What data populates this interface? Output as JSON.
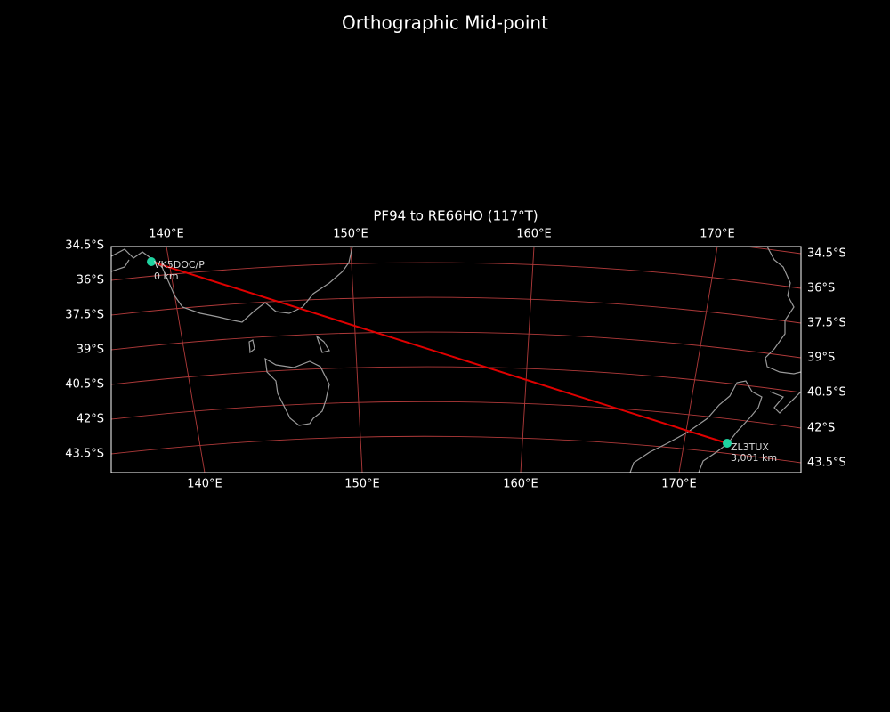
{
  "title": "Orthographic Mid-point",
  "subtitle": "PF94 to RE66HO (117°T)",
  "top_lon_labels": [
    "140°E",
    "150°E",
    "160°E",
    "170°E"
  ],
  "bottom_lon_labels": [
    "140°E",
    "150°E",
    "160°E",
    "170°E"
  ],
  "left_lat_labels": [
    "34.5°S",
    "36°S",
    "37.5°S",
    "39°S",
    "40.5°S",
    "42°S",
    "43.5°S"
  ],
  "right_lat_labels": [
    "34.5°S",
    "36°S",
    "37.5°S",
    "39°S",
    "40.5°S",
    "42°S",
    "43.5°S"
  ],
  "stations": [
    {
      "call": "VK5DOC/P",
      "distance": "0 km"
    },
    {
      "call": "ZL3TUX",
      "distance": "3,001 km"
    }
  ]
}
